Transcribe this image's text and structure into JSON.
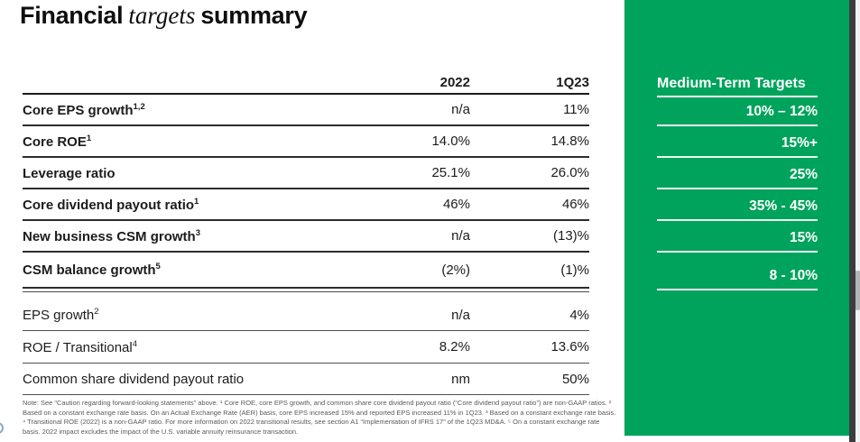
{
  "title": {
    "part1": "Financial",
    "part2": "targets",
    "part3": "summary"
  },
  "table": {
    "columns": {
      "y2022": "2022",
      "q123": "1Q23"
    },
    "bold_rows": [
      {
        "label": "Core EPS growth",
        "sup": "1,2",
        "v2022": "n/a",
        "v1q23": "11%"
      },
      {
        "label": "Core ROE",
        "sup": "1",
        "v2022": "14.0%",
        "v1q23": "14.8%"
      },
      {
        "label": "Leverage ratio",
        "sup": "",
        "v2022": "25.1%",
        "v1q23": "26.0%"
      },
      {
        "label": "Core dividend payout ratio",
        "sup": "1",
        "v2022": "46%",
        "v1q23": "46%"
      },
      {
        "label": "New business CSM growth",
        "sup": "3",
        "v2022": "n/a",
        "v1q23": "(13)%"
      },
      {
        "label": "CSM balance growth",
        "sup": "5",
        "v2022": "(2%)",
        "v1q23": "(1)%"
      }
    ],
    "regular_rows": [
      {
        "label": "EPS growth",
        "sup": "2",
        "v2022": "n/a",
        "v1q23": "4%"
      },
      {
        "label": "ROE / Transitional",
        "sup": "4",
        "v2022": "8.2%",
        "v1q23": "13.6%"
      },
      {
        "label": "Common share dividend payout ratio",
        "sup": "",
        "v2022": "nm",
        "v1q23": "50%"
      }
    ]
  },
  "targets_panel": {
    "header": "Medium-Term Targets",
    "values": [
      "10% – 12%",
      "15%+",
      "25%",
      "35% - 45%",
      "15%",
      "8 - 10%"
    ]
  },
  "footnote": "Note: See “Caution regarding forward-looking statements” above. ¹ Core ROE, core EPS growth, and common share core dividend payout ratio (“Core dividend payout ratio”) are non-GAAP ratios. ² Based on a constant exchange rate basis. On an Actual Exchange Rate (AER) basis, core EPS increased 15% and reported EPS increased 11% in 1Q23. ³ Based on a constant exchange rate basis. ⁴ Transitional ROE (2022) is a non-GAAP ratio. For more information on 2022 transitional results, see section A1 “Implementation of IFRS 17” of the 1Q23 MD&A. ⁵ On a constant exchange rate basis. 2022 impact excludes the impact of the U.S. variable annuity reinsurance transaction.",
  "colors": {
    "brand_green": "#00a35c",
    "table_line_dark": "#2c2c2c",
    "window_edge": "#3a3d41",
    "scroll_thumb": "#b5b5b5"
  }
}
